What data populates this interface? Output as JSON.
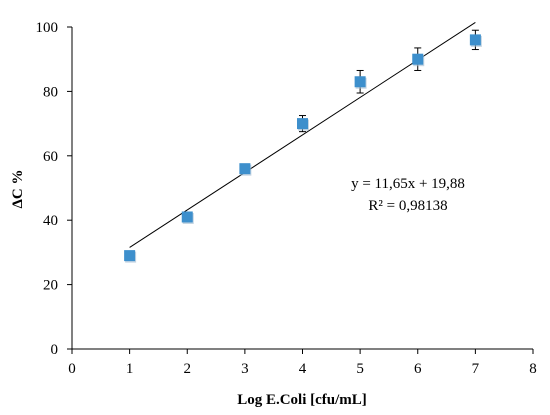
{
  "chart_data": {
    "type": "scatter",
    "title": "",
    "xlabel": "Log E.Coli [cfu/mL]",
    "ylabel": "ΔC %",
    "xlim": [
      0,
      8
    ],
    "ylim": [
      0,
      100
    ],
    "x_ticks": [
      0,
      1,
      2,
      3,
      4,
      5,
      6,
      7,
      8
    ],
    "y_ticks": [
      0,
      20,
      40,
      60,
      80,
      100
    ],
    "grid": false,
    "legend": "none",
    "marker": "square",
    "color": "#3d8fcc",
    "series": [
      {
        "x": [
          1,
          2,
          3,
          4,
          5,
          6,
          7
        ],
        "y": [
          29,
          41,
          56,
          70,
          83,
          90,
          96
        ],
        "error": [
          0,
          1,
          0,
          2.5,
          3.5,
          3.5,
          3
        ]
      }
    ],
    "trendline": {
      "slope": 11.65,
      "intercept": 19.88,
      "x_range": [
        1,
        7
      ]
    },
    "annotations": [
      "y = 11,65x + 19,88",
      "R² = 0,98138"
    ]
  }
}
